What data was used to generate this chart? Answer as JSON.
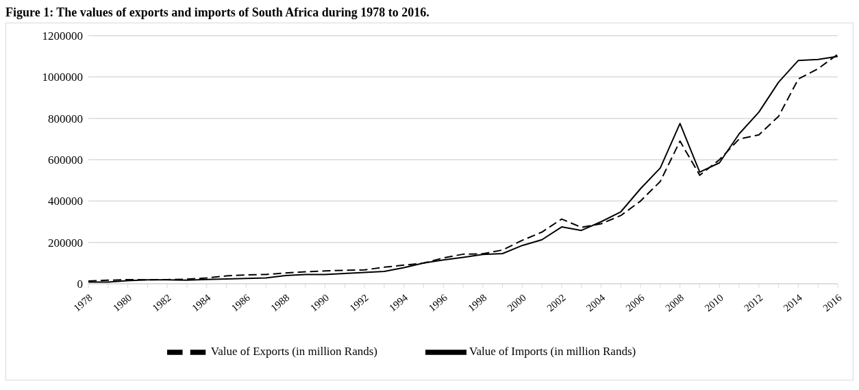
{
  "chart_data": {
    "type": "line",
    "title": "Figure 1: The values of exports and imports of South Africa during 1978 to 2016.",
    "categories": [
      "1978",
      null,
      "1980",
      null,
      "1982",
      null,
      "1984",
      null,
      "1986",
      null,
      "1988",
      null,
      "1990",
      null,
      "1992",
      null,
      "1994",
      null,
      "1996",
      null,
      "1998",
      null,
      "2000",
      null,
      "2002",
      null,
      "2004",
      null,
      "2006",
      null,
      "2008",
      null,
      "2010",
      null,
      "2012",
      null,
      "2014",
      null,
      "2016"
    ],
    "series": [
      {
        "name": "Value of Exports (in million Rands)",
        "color": "#000000",
        "line_style": "dashed",
        "values": [
          13000,
          17000,
          20000,
          19000,
          20000,
          22000,
          28000,
          38000,
          43000,
          45000,
          52000,
          58000,
          62000,
          65000,
          67000,
          80000,
          90000,
          100000,
          125000,
          143000,
          145000,
          163000,
          210000,
          250000,
          313000,
          273000,
          290000,
          330000,
          400000,
          495000,
          690000,
          525000,
          600000,
          700000,
          720000,
          810000,
          990000,
          1040000,
          1110000
        ]
      },
      {
        "name": "Value of Imports (in million Rands)",
        "color": "#000000",
        "line_style": "solid",
        "values": [
          8000,
          8000,
          15000,
          19000,
          19000,
          17000,
          21000,
          23000,
          26000,
          28000,
          40000,
          45000,
          45000,
          50000,
          55000,
          60000,
          78000,
          100000,
          115000,
          128000,
          142000,
          146000,
          185000,
          213000,
          275000,
          258000,
          300000,
          348000,
          460000,
          560000,
          775000,
          540000,
          585000,
          725000,
          830000,
          975000,
          1080000,
          1085000,
          1100000
        ]
      }
    ],
    "ylim": [
      0,
      1200000
    ],
    "yticks": [
      0,
      200000,
      400000,
      600000,
      800000,
      1000000,
      1200000
    ],
    "grid": "y",
    "legend": "bottom",
    "marker": "none"
  }
}
